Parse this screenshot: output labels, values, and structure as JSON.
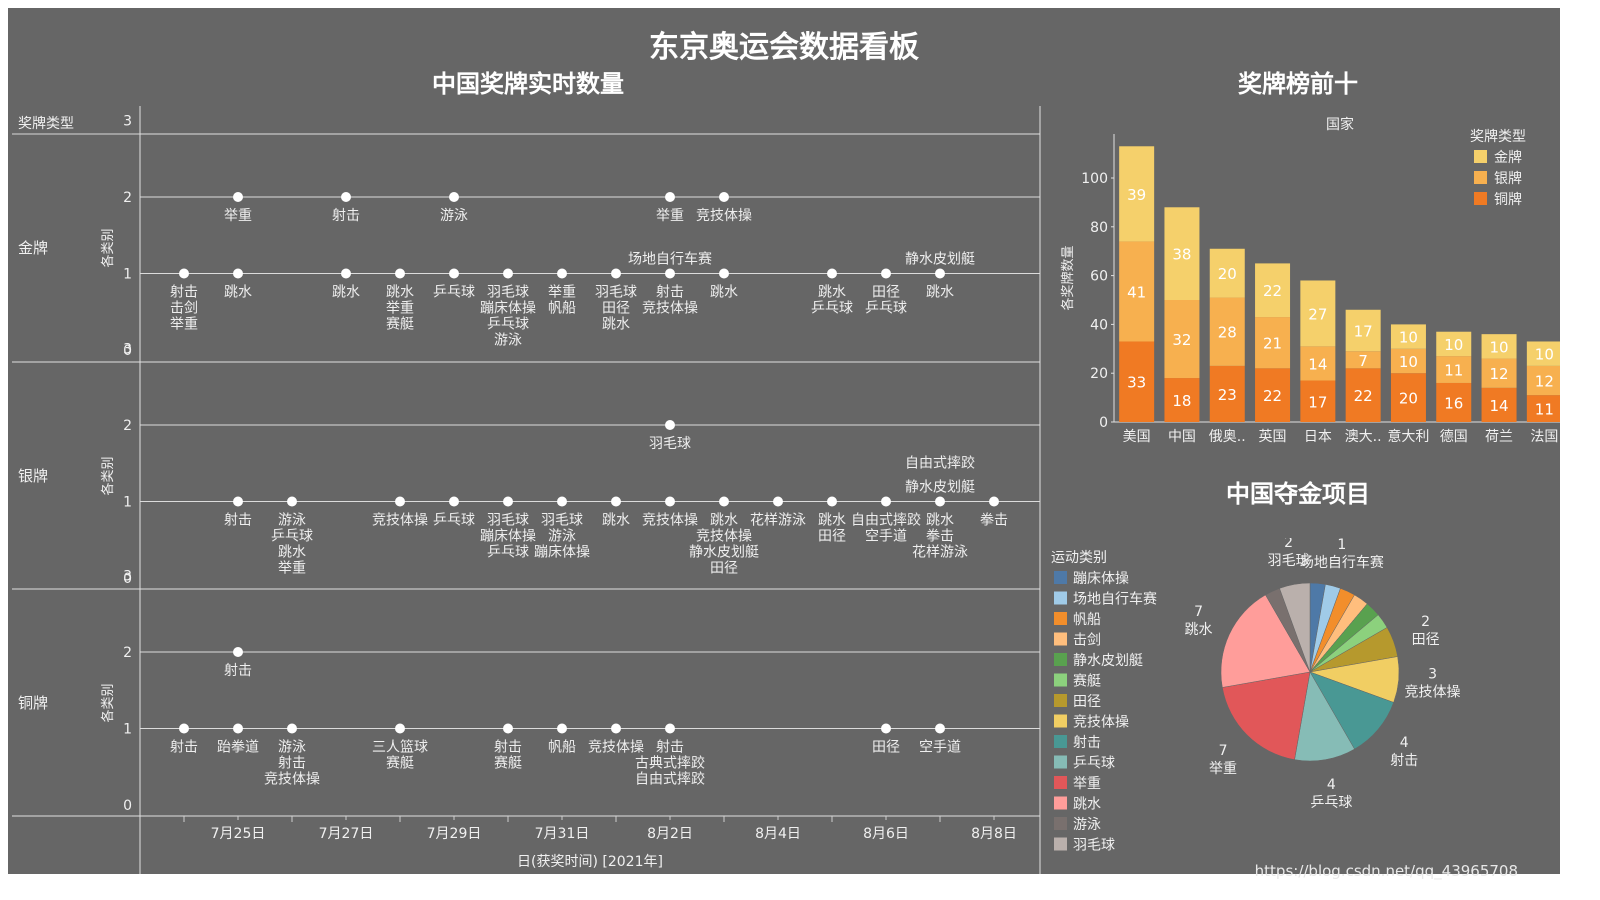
{
  "dashboard": {
    "title": "东京奥运会数据看板",
    "watermark": "https://blog.csdn.net/qq_43965708"
  },
  "timeline": {
    "title": "中国奖牌实时数量",
    "row_header": "奖牌类型",
    "y_axis_label": "各类别",
    "x_axis_label": "日(获奖时间) [2021年]",
    "y_ticks": [
      "0",
      "1",
      "2",
      "3"
    ],
    "x_ticks": [
      {
        "day": 25,
        "label": "7月25日"
      },
      {
        "day": 27,
        "label": "7月27日"
      },
      {
        "day": 29,
        "label": "7月29日"
      },
      {
        "day": 31,
        "label": "7月31日"
      },
      {
        "day": 33,
        "label": "8月2日"
      },
      {
        "day": 35,
        "label": "8月4日"
      },
      {
        "day": 37,
        "label": "8月6日"
      },
      {
        "day": 39,
        "label": "8月8日"
      }
    ]
  },
  "chart_data": [
    {
      "type": "scatter",
      "title": "中国奖牌实时数量",
      "x_axis": "日(获奖时间) [2021年]",
      "y_axis": "各类别",
      "x_unit_note": "day: 24=7月24日 … 31=7月31日, 32=8月1日 … 39=8月8日",
      "ylim": [
        0,
        3
      ],
      "panels": [
        {
          "name": "金牌",
          "points": [
            {
              "day": 24,
              "count": 1,
              "labels": [
                "射击",
                "击剑",
                "举重"
              ]
            },
            {
              "day": 25,
              "count": 2,
              "labels": [
                "举重"
              ]
            },
            {
              "day": 25,
              "count": 1,
              "labels": [
                "跳水"
              ]
            },
            {
              "day": 27,
              "count": 2,
              "labels": [
                "射击"
              ]
            },
            {
              "day": 27,
              "count": 1,
              "labels": [
                "跳水"
              ]
            },
            {
              "day": 28,
              "count": 1,
              "labels": [
                "跳水",
                "举重",
                "赛艇"
              ]
            },
            {
              "day": 29,
              "count": 2,
              "labels": [
                "游泳"
              ]
            },
            {
              "day": 29,
              "count": 1,
              "labels": [
                "乒乓球"
              ]
            },
            {
              "day": 30,
              "count": 1,
              "labels": [
                "羽毛球",
                "蹦床体操",
                "乒乓球",
                "游泳"
              ]
            },
            {
              "day": 31,
              "count": 1,
              "labels": [
                "举重",
                "帆船"
              ]
            },
            {
              "day": 32,
              "count": 1,
              "labels": [
                "羽毛球",
                "田径",
                "跳水"
              ]
            },
            {
              "day": 33,
              "count": 2,
              "labels": [
                "举重"
              ]
            },
            {
              "day": 33,
              "count": 1,
              "labels": [
                "射击",
                "竞技体操"
              ],
              "top_label": "场地自行车赛"
            },
            {
              "day": 34,
              "count": 2,
              "labels": [
                "竞技体操"
              ]
            },
            {
              "day": 34,
              "count": 1,
              "labels": [
                "跳水"
              ]
            },
            {
              "day": 36,
              "count": 1,
              "labels": [
                "跳水",
                "乒乓球"
              ]
            },
            {
              "day": 37,
              "count": 1,
              "labels": [
                "田径",
                "乒乓球"
              ]
            },
            {
              "day": 38,
              "count": 1,
              "labels": [
                "跳水"
              ],
              "top_label": "静水皮划艇"
            }
          ]
        },
        {
          "name": "银牌",
          "points": [
            {
              "day": 25,
              "count": 1,
              "labels": [
                "射击"
              ]
            },
            {
              "day": 26,
              "count": 1,
              "labels": [
                "游泳",
                "乒乓球",
                "跳水",
                "举重"
              ]
            },
            {
              "day": 28,
              "count": 1,
              "labels": [
                "竞技体操"
              ]
            },
            {
              "day": 29,
              "count": 1,
              "labels": [
                "乒乓球"
              ]
            },
            {
              "day": 30,
              "count": 1,
              "labels": [
                "羽毛球",
                "蹦床体操",
                "乒乓球"
              ]
            },
            {
              "day": 31,
              "count": 1,
              "labels": [
                "羽毛球",
                "游泳",
                "蹦床体操"
              ]
            },
            {
              "day": 32,
              "count": 1,
              "labels": [
                "跳水"
              ]
            },
            {
              "day": 33,
              "count": 2,
              "labels": [
                "羽毛球"
              ]
            },
            {
              "day": 33,
              "count": 1,
              "labels": [
                "竞技体操"
              ]
            },
            {
              "day": 34,
              "count": 1,
              "labels": [
                "跳水",
                "竞技体操",
                "静水皮划艇",
                "田径"
              ]
            },
            {
              "day": 35,
              "count": 1,
              "labels": [
                "花样游泳"
              ]
            },
            {
              "day": 36,
              "count": 1,
              "labels": [
                "跳水",
                "田径"
              ]
            },
            {
              "day": 37,
              "count": 1,
              "labels": [
                "自由式摔跤",
                "空手道"
              ]
            },
            {
              "day": 38,
              "count": 1,
              "labels": [
                "跳水",
                "拳击",
                "花样游泳"
              ],
              "top_labels": [
                "自由式摔跤",
                "静水皮划艇"
              ]
            },
            {
              "day": 39,
              "count": 1,
              "labels": [
                "拳击"
              ]
            }
          ]
        },
        {
          "name": "铜牌",
          "points": [
            {
              "day": 24,
              "count": 1,
              "labels": [
                "射击"
              ]
            },
            {
              "day": 25,
              "count": 2,
              "labels": [
                "射击"
              ]
            },
            {
              "day": 25,
              "count": 1,
              "labels": [
                "跆拳道"
              ]
            },
            {
              "day": 26,
              "count": 1,
              "labels": [
                "游泳",
                "射击",
                "竞技体操"
              ]
            },
            {
              "day": 28,
              "count": 1,
              "labels": [
                "三人篮球",
                "赛艇"
              ]
            },
            {
              "day": 30,
              "count": 1,
              "labels": [
                "射击",
                "赛艇"
              ]
            },
            {
              "day": 31,
              "count": 1,
              "labels": [
                "帆船"
              ]
            },
            {
              "day": 32,
              "count": 1,
              "labels": [
                "竞技体操"
              ]
            },
            {
              "day": 33,
              "count": 1,
              "labels": [
                "射击",
                "古典式摔跤",
                "自由式摔跤"
              ]
            },
            {
              "day": 37,
              "count": 1,
              "labels": [
                "田径"
              ]
            },
            {
              "day": 38,
              "count": 1,
              "labels": [
                "空手道"
              ]
            }
          ]
        }
      ]
    },
    {
      "type": "bar",
      "stacked": true,
      "title": "奖牌榜前十",
      "column_header": "国家",
      "ylabel": "各奖牌数量",
      "ylim": [
        0,
        120
      ],
      "yticks": [
        0,
        20,
        40,
        60,
        80,
        100
      ],
      "legend_title": "奖牌类型",
      "legend_position": "top-right",
      "categories": [
        "美国",
        "中国",
        "俄奥..",
        "英国",
        "日本",
        "澳大..",
        "意大利",
        "德国",
        "荷兰",
        "法国"
      ],
      "series": [
        {
          "name": "铜牌",
          "color": "#f07a23",
          "values": [
            33,
            18,
            23,
            22,
            17,
            22,
            20,
            16,
            14,
            11
          ]
        },
        {
          "name": "银牌",
          "color": "#f7b04f",
          "values": [
            41,
            32,
            28,
            21,
            14,
            7,
            10,
            11,
            12,
            12
          ]
        },
        {
          "name": "金牌",
          "color": "#f5d06b",
          "values": [
            39,
            38,
            20,
            22,
            27,
            17,
            10,
            10,
            10,
            10
          ]
        }
      ]
    },
    {
      "type": "pie",
      "title": "中国夺金项目",
      "legend_title": "运动类别",
      "legend_position": "left",
      "slices": [
        {
          "name": "蹦床体操",
          "value": 1,
          "color": "#4e79a7",
          "label": false
        },
        {
          "name": "场地自行车赛",
          "value": 1,
          "color": "#a0cbe8",
          "label": true
        },
        {
          "name": "帆船",
          "value": 1,
          "color": "#f28e2b",
          "label": false
        },
        {
          "name": "击剑",
          "value": 1,
          "color": "#ffbe7d",
          "label": false
        },
        {
          "name": "静水皮划艇",
          "value": 1,
          "color": "#59a14f",
          "label": false
        },
        {
          "name": "赛艇",
          "value": 1,
          "color": "#8cd17d",
          "label": false
        },
        {
          "name": "田径",
          "value": 2,
          "color": "#b6992d",
          "label": true
        },
        {
          "name": "竞技体操",
          "value": 3,
          "color": "#f1ce63",
          "label": true
        },
        {
          "name": "射击",
          "value": 4,
          "color": "#499894",
          "label": true
        },
        {
          "name": "乒乓球",
          "value": 4,
          "color": "#86bcb6",
          "label": true
        },
        {
          "name": "举重",
          "value": 7,
          "color": "#e15759",
          "label": true
        },
        {
          "name": "跳水",
          "value": 7,
          "color": "#ff9d9a",
          "label": true
        },
        {
          "name": "游泳",
          "value": 1,
          "color": "#79706e",
          "label": false
        },
        {
          "name": "羽毛球",
          "value": 2,
          "color": "#bab0ac",
          "label": true
        }
      ]
    }
  ]
}
